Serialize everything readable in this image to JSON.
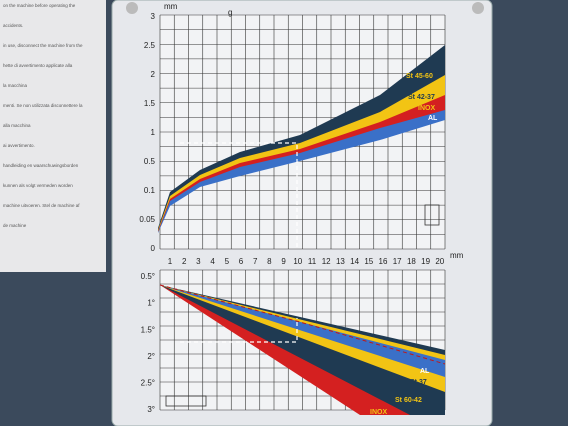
{
  "upper_chart": {
    "unit_y": "mm",
    "unit_g": "g",
    "y_labels": [
      "3",
      "2.5",
      "2",
      "1.5",
      "1",
      "0.5",
      "0.1",
      "0.05",
      "0"
    ],
    "x_labels": [
      "1",
      "2",
      "3",
      "4",
      "5",
      "6",
      "7",
      "8",
      "9",
      "10",
      "11",
      "12",
      "13",
      "14",
      "15",
      "16",
      "17",
      "18",
      "19",
      "20"
    ],
    "unit_x": "mm",
    "bands": [
      "St 45-60",
      "St 42-37",
      "INOX",
      "AL"
    ]
  },
  "lower_chart": {
    "y_labels": [
      "0.5°",
      "1°",
      "1.5°",
      "2°",
      "2.5°",
      "3°"
    ],
    "bands": [
      "AL",
      "St 37",
      "St 60-42",
      "INOX"
    ]
  },
  "notice": {
    "lines": [
      "on the machine before operating the",
      "accidents.",
      "in use, disconnect the machine from the",
      "hette di avvertimento applicate alla",
      "la macchina",
      "menti. Se non utilizzata disconnettere la",
      "alla macchina",
      "ai avvertimento.",
      "handleiding en waarschuwingsborden",
      "kunnen als volgt vermeden worden",
      "machine uitvoeren. Stel de machine af",
      "de machine"
    ]
  }
}
